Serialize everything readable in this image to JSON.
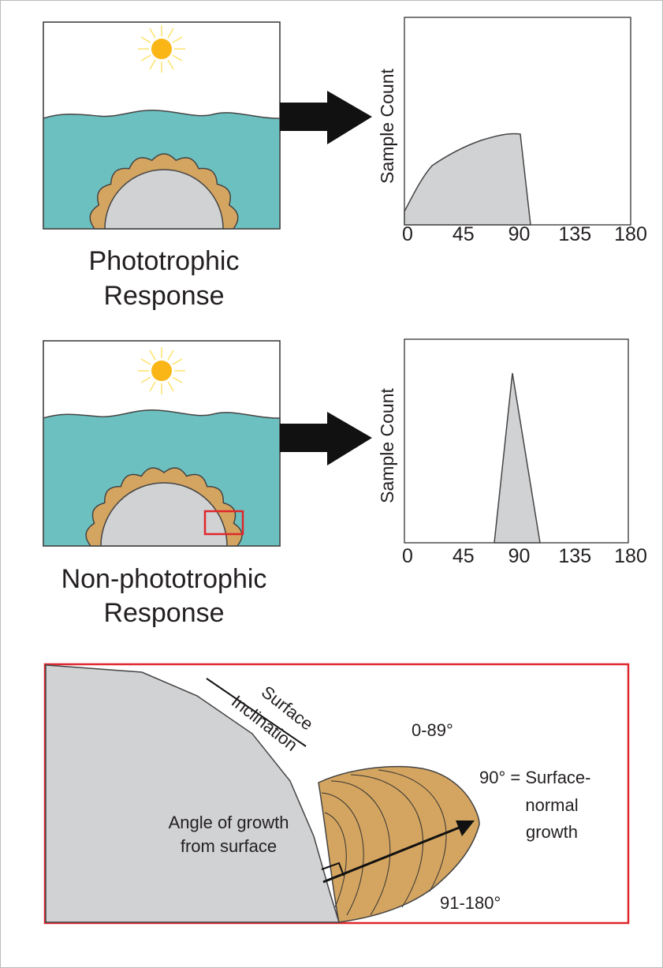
{
  "panels": [
    {
      "caption": [
        "Phototrophic",
        "Response"
      ],
      "plot": {
        "y_label": "Sample Count",
        "x_ticks": [
          0,
          45,
          90,
          135,
          180
        ]
      }
    },
    {
      "caption": [
        "Non-phototrophic",
        "Response"
      ],
      "plot": {
        "y_label": "Sample Count",
        "x_ticks": [
          0,
          45,
          90,
          135,
          180
        ]
      }
    }
  ],
  "detail": {
    "surface_label": [
      "Surface",
      "Inclination"
    ],
    "low_range": "0-89°",
    "normal": [
      "90° = Surface-",
      "normal",
      "growth"
    ],
    "angle_label": [
      "Angle of growth",
      "from surface"
    ],
    "high_range": "91-180°"
  }
}
